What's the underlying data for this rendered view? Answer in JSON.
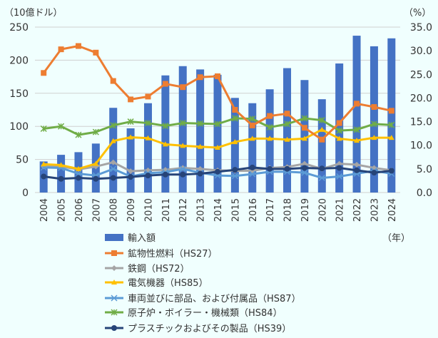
{
  "chart_data": {
    "type": "bar+line",
    "left_axis_label": "（10億ドル）",
    "right_axis_label": "（%）",
    "x_unit_label": "（年）",
    "left_ylim": [
      0,
      250
    ],
    "left_ticks": [
      "0",
      "50",
      "100",
      "150",
      "200",
      "250"
    ],
    "right_ylim": [
      0,
      35
    ],
    "right_ticks": [
      "0.0",
      "5.0",
      "10.0",
      "15.0",
      "20.0",
      "25.0",
      "30.0",
      "35.0"
    ],
    "grid": true,
    "legend_placement": "bottom",
    "categories": [
      "2004",
      "2005",
      "2006",
      "2007",
      "2008",
      "2009",
      "2010",
      "2011",
      "2012",
      "2013",
      "2014",
      "2015",
      "2016",
      "2017",
      "2018",
      "2019",
      "2020",
      "2021",
      "2022",
      "2023",
      "2024"
    ],
    "bars": {
      "name": "輸入額",
      "axis": "left",
      "color": "#4472c4",
      "values": [
        47,
        57,
        61,
        74,
        128,
        97,
        135,
        177,
        191,
        186,
        178,
        143,
        135,
        156,
        188,
        170,
        141,
        195,
        237,
        221,
        233
      ]
    },
    "series": [
      {
        "name": "鉱物性燃料（HS27）",
        "axis": "right",
        "color": "#ed7d31",
        "marker": "square",
        "values": [
          25.3,
          30.3,
          31.0,
          29.6,
          23.6,
          19.7,
          20.3,
          23.0,
          22.3,
          24.4,
          24.6,
          17.5,
          14.2,
          16.2,
          16.7,
          13.7,
          11.2,
          14.7,
          18.8,
          18.1,
          17.3
        ]
      },
      {
        "name": "鉄鋼（HS72）",
        "axis": "right",
        "color": "#a5a5a5",
        "marker": "diamond",
        "values": [
          5.5,
          5.5,
          4.9,
          5.5,
          6.4,
          4.5,
          4.7,
          4.8,
          5.2,
          5.0,
          4.7,
          4.6,
          4.6,
          5.2,
          5.4,
          6.1,
          5.0,
          6.1,
          5.9,
          5.2,
          4.7
        ]
      },
      {
        "name": "電気機器（HS85）",
        "axis": "right",
        "color": "#ffc000",
        "marker": "triangle",
        "values": [
          6.0,
          5.8,
          5.0,
          6.1,
          10.9,
          11.7,
          11.5,
          10.2,
          9.9,
          9.7,
          9.5,
          10.7,
          11.4,
          11.4,
          11.2,
          11.4,
          13.3,
          11.4,
          11.0,
          11.6,
          11.6
        ]
      },
      {
        "name": "車両並びに部品、および付属品（HS87）",
        "axis": "right",
        "color": "#5b9bd5",
        "marker": "x",
        "values": [
          5.3,
          5.2,
          4.0,
          3.6,
          5.0,
          3.4,
          4.1,
          4.3,
          5.0,
          4.2,
          3.6,
          3.5,
          3.9,
          4.4,
          4.4,
          4.2,
          3.1,
          3.4,
          4.0,
          4.6,
          4.0
        ]
      },
      {
        "name": "原子炉・ボイラー・機械類（HS84）",
        "axis": "right",
        "color": "#70ad47",
        "marker": "star",
        "values": [
          13.5,
          14.0,
          12.2,
          12.8,
          14.2,
          15.0,
          14.7,
          14.1,
          14.7,
          14.6,
          14.5,
          15.7,
          15.6,
          13.8,
          14.5,
          15.7,
          15.3,
          13.1,
          13.3,
          14.5,
          14.3
        ]
      },
      {
        "name": "プラスチックおよびその製品（HS39）",
        "axis": "right",
        "color": "#264478",
        "marker": "circle",
        "values": [
          3.4,
          2.9,
          3.1,
          2.9,
          3.1,
          3.3,
          3.6,
          3.8,
          3.8,
          4.0,
          4.4,
          4.8,
          5.3,
          5.0,
          5.0,
          5.2,
          5.1,
          5.2,
          4.7,
          4.2,
          4.6
        ]
      }
    ]
  }
}
